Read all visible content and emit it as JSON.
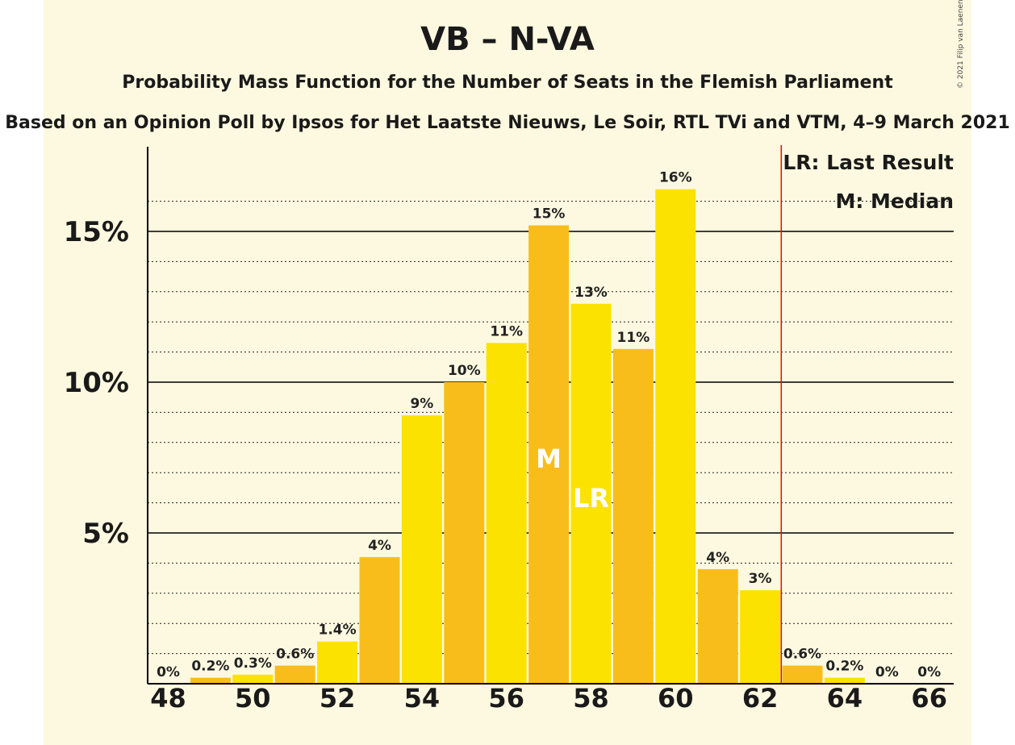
{
  "title": "VB – N-VA",
  "subtitle": "Probability Mass Function for the Number of Seats in the Flemish Parliament",
  "source_line": "Based on an Opinion Poll by Ipsos for Het Laatste Nieuws, Le Soir, RTL TVi and VTM, 4–9 March 2021",
  "copyright": "© 2021 Filip van Laenen",
  "legend": {
    "last_result": "LR: Last Result",
    "median": "M: Median"
  },
  "colors": {
    "bar_even": "#fce200",
    "bar_odd": "#f9bd1b",
    "last_result_line": "#ff0000",
    "background": "#fdf9e0"
  },
  "chart_data": {
    "type": "bar",
    "title": "VB – N-VA",
    "categories": [
      48,
      49,
      50,
      51,
      52,
      53,
      54,
      55,
      56,
      57,
      58,
      59,
      60,
      61,
      62,
      63,
      64,
      65,
      66
    ],
    "values": [
      0,
      0.2,
      0.3,
      0.6,
      1.4,
      4.2,
      8.9,
      10.0,
      11.3,
      15.2,
      12.6,
      11.1,
      16.4,
      3.8,
      3.1,
      0.6,
      0.2,
      0,
      0
    ],
    "data_labels": [
      "0%",
      "0.2%",
      "0.3%",
      "0.6%",
      "1.4%",
      "4%",
      "9%",
      "10%",
      "11%",
      "15%",
      "13%",
      "11%",
      "16%",
      "4%",
      "3%",
      "0.6%",
      "0.2%",
      "0%",
      "0%"
    ],
    "x_tick_labels": [
      "48",
      "50",
      "52",
      "54",
      "56",
      "58",
      "60",
      "62",
      "64",
      "66"
    ],
    "y_ticks": [
      {
        "value": 5,
        "label": "5%"
      },
      {
        "value": 10,
        "label": "10%"
      },
      {
        "value": 15,
        "label": "15%"
      }
    ],
    "ylim": [
      0,
      17.7
    ],
    "median": {
      "seats": 57,
      "label": "M"
    },
    "last_result": {
      "seats": 58,
      "label": "LR"
    },
    "majority_line_after_seats": 62,
    "legend_position": "top-right",
    "grid": true
  }
}
